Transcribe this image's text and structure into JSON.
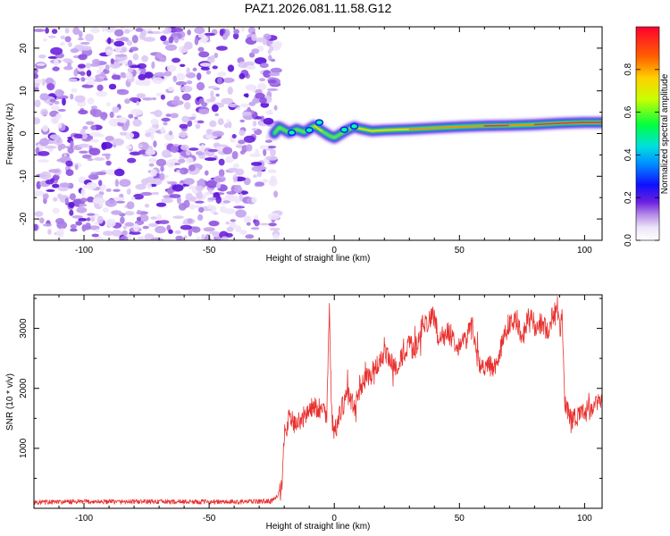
{
  "title": "PAZ1.2026.081.11.58.G12",
  "colors": {
    "line": "#e8312f",
    "axis": "#000000",
    "background": "#ffffff",
    "noise": "#8a2be2",
    "colormap": [
      "#ffffff",
      "#d9c7f2",
      "#7c3aed",
      "#1f1fff",
      "#00c8ff",
      "#00ff66",
      "#ffff00",
      "#ff8800",
      "#ff0033"
    ]
  },
  "chart_data": [
    {
      "type": "heatmap",
      "name": "spectrogram",
      "xlabel": "Height of straight line (km)",
      "ylabel": "Frequency (Hz)",
      "xlim": [
        -120,
        107
      ],
      "ylim": [
        -25,
        25
      ],
      "xticks": [
        -100,
        -50,
        0,
        50,
        100
      ],
      "yticks": [
        -20,
        -10,
        0,
        10,
        20
      ],
      "noise_region_x": [
        -120,
        -24
      ],
      "ridge": {
        "x": [
          -24,
          -22,
          -18,
          -15,
          -12,
          -8,
          -5,
          -2,
          0,
          2,
          5,
          8,
          10,
          15,
          20,
          30,
          40,
          50,
          60,
          70,
          80,
          90,
          100,
          107
        ],
        "freq": [
          0.0,
          1.5,
          0.2,
          1.0,
          0.3,
          1.8,
          0.6,
          -0.5,
          -1.0,
          -0.3,
          0.8,
          1.6,
          1.2,
          0.6,
          0.8,
          1.0,
          1.3,
          1.6,
          1.8,
          1.9,
          2.1,
          2.4,
          2.6,
          2.6
        ],
        "amplitude": [
          0.35,
          0.55,
          0.5,
          0.5,
          0.55,
          0.6,
          0.5,
          0.45,
          0.4,
          0.45,
          0.55,
          0.6,
          0.6,
          0.62,
          0.65,
          0.7,
          0.75,
          0.78,
          0.8,
          0.78,
          0.8,
          0.85,
          0.9,
          0.88
        ]
      },
      "colorbar": {
        "label": "Normalized spectral amplitude",
        "range": [
          0,
          1
        ],
        "ticks": [
          "0.0",
          "0.2",
          "0.4",
          "0.6",
          "0.8"
        ]
      }
    },
    {
      "type": "line",
      "name": "snr",
      "xlabel": "Height of straight line (km)",
      "ylabel": "SNR (10 * v/v)",
      "xlim": [
        -120,
        107
      ],
      "ylim": [
        0,
        3560
      ],
      "xticks": [
        -100,
        -50,
        0,
        50,
        100
      ],
      "yticks": [
        1000,
        2000,
        3000
      ],
      "envelope": {
        "x": [
          -120,
          -100,
          -60,
          -40,
          -25,
          -21,
          -20,
          -18,
          -15,
          -12,
          -8,
          -5,
          -3,
          -2,
          -1,
          0,
          3,
          5,
          8,
          10,
          12,
          15,
          20,
          25,
          30,
          32,
          35,
          40,
          42,
          45,
          50,
          53,
          55,
          57,
          60,
          62,
          65,
          68,
          70,
          73,
          75,
          78,
          80,
          83,
          85,
          88,
          89,
          90,
          91,
          92,
          95,
          100,
          104,
          107
        ],
        "y": [
          100,
          110,
          110,
          105,
          120,
          300,
          1200,
          1500,
          1400,
          1550,
          1700,
          1650,
          1600,
          3350,
          1500,
          1250,
          1650,
          1900,
          1700,
          1950,
          2150,
          2250,
          2550,
          2350,
          2750,
          2600,
          3050,
          3200,
          2750,
          2950,
          2700,
          2850,
          3100,
          2550,
          2250,
          2400,
          2350,
          2900,
          3100,
          3150,
          2800,
          3250,
          3000,
          3100,
          2950,
          3300,
          3450,
          2950,
          3200,
          1750,
          1500,
          1600,
          1700,
          1780
        ]
      }
    }
  ]
}
